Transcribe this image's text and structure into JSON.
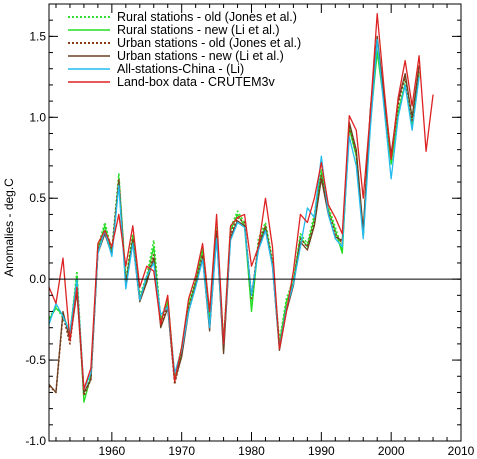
{
  "chart_data": {
    "type": "line",
    "title": "",
    "xlabel": "",
    "ylabel": "Anomalies - deg.C",
    "xlim": [
      1951,
      2010
    ],
    "ylim": [
      -1.0,
      1.7
    ],
    "x_ticks": [
      1960,
      1970,
      1980,
      1990,
      2000,
      2010
    ],
    "y_ticks": [
      -1.0,
      -0.5,
      0.0,
      0.5,
      1.0,
      1.5
    ],
    "x_tick_labels": [
      "1960",
      "1970",
      "1980",
      "1990",
      "2000",
      "2010"
    ],
    "y_tick_labels": [
      "-1.0",
      "-0.5",
      "0.0",
      "0.5",
      "1.0",
      "1.5"
    ],
    "zero_line": true,
    "grid": false,
    "legend_position": "top-left",
    "series": [
      {
        "name": "Rural stations - old (Jones et al.)",
        "color": "#33dd33",
        "dash": "dotted",
        "x": [
          1951,
          1952,
          1953,
          1954,
          1955,
          1956,
          1957,
          1958,
          1959,
          1960,
          1961,
          1962,
          1963,
          1964,
          1965,
          1966,
          1967,
          1968,
          1969,
          1970,
          1971,
          1972,
          1973,
          1974,
          1975,
          1976,
          1977,
          1978,
          1979,
          1980,
          1981,
          1982,
          1983,
          1984,
          1985,
          1986,
          1987,
          1988,
          1989,
          1990,
          1991,
          1992,
          1993,
          1994,
          1995,
          1996,
          1997,
          1998,
          1999,
          2000,
          2001,
          2002,
          2003,
          2004
        ],
        "y": [
          -0.24,
          -0.17,
          -0.24,
          -0.35,
          0.05,
          -0.72,
          -0.6,
          0.2,
          0.35,
          0.18,
          0.65,
          0.0,
          0.28,
          -0.1,
          0.02,
          0.24,
          -0.25,
          -0.12,
          -0.6,
          -0.42,
          -0.15,
          0.0,
          0.2,
          -0.25,
          0.32,
          -0.38,
          0.32,
          0.42,
          0.35,
          -0.18,
          0.25,
          0.35,
          0.12,
          -0.38,
          -0.12,
          0.0,
          0.28,
          0.22,
          0.4,
          0.68,
          0.45,
          0.32,
          0.18,
          0.95,
          0.78,
          0.28,
          0.98,
          1.42,
          1.1,
          0.73,
          1.05,
          1.22,
          0.96,
          1.28
        ]
      },
      {
        "name": "Rural stations - new (Li et al.)",
        "color": "#22dd22",
        "dash": "solid",
        "x": [
          1951,
          1952,
          1953,
          1954,
          1955,
          1956,
          1957,
          1958,
          1959,
          1960,
          1961,
          1962,
          1963,
          1964,
          1965,
          1966,
          1967,
          1968,
          1969,
          1970,
          1971,
          1972,
          1973,
          1974,
          1975,
          1976,
          1977,
          1978,
          1979,
          1980,
          1981,
          1982,
          1983,
          1984,
          1985,
          1986,
          1987,
          1988,
          1989,
          1990,
          1991,
          1992,
          1993,
          1994,
          1995,
          1996,
          1997,
          1998,
          1999,
          2000,
          2001,
          2002,
          2003,
          2004
        ],
        "y": [
          -0.25,
          -0.18,
          -0.22,
          -0.33,
          0.02,
          -0.76,
          -0.6,
          0.18,
          0.33,
          0.16,
          0.62,
          -0.02,
          0.26,
          -0.12,
          0.0,
          0.2,
          -0.26,
          -0.14,
          -0.62,
          -0.45,
          -0.16,
          -0.02,
          0.18,
          -0.27,
          0.3,
          -0.4,
          0.3,
          0.4,
          0.33,
          -0.2,
          0.22,
          0.33,
          0.1,
          -0.4,
          -0.14,
          -0.02,
          0.26,
          0.2,
          0.38,
          0.66,
          0.43,
          0.3,
          0.16,
          0.93,
          0.76,
          0.26,
          0.96,
          1.4,
          1.08,
          0.71,
          1.03,
          1.2,
          0.94,
          1.26
        ]
      },
      {
        "name": "Urban stations - old (Jones et al.)",
        "color": "#8b3a1a",
        "dash": "dotted",
        "x": [
          1951,
          1952,
          1953,
          1954,
          1955,
          1956,
          1957,
          1958,
          1959,
          1960,
          1961,
          1962,
          1963,
          1964,
          1965,
          1966,
          1967,
          1968,
          1969,
          1970,
          1971,
          1972,
          1973,
          1974,
          1975,
          1976,
          1977,
          1978,
          1979,
          1980,
          1981,
          1982,
          1983,
          1984,
          1985,
          1986,
          1987,
          1988,
          1989,
          1990,
          1991,
          1992,
          1993,
          1994,
          1995,
          1996,
          1997,
          1998,
          1999,
          2000,
          2001,
          2002,
          2003,
          2004
        ],
        "y": [
          -0.66,
          -0.7,
          -0.22,
          -0.4,
          -0.05,
          -0.72,
          -0.62,
          0.18,
          0.3,
          0.17,
          0.62,
          -0.02,
          0.25,
          -0.12,
          0.0,
          0.15,
          -0.28,
          -0.16,
          -0.65,
          -0.46,
          -0.18,
          -0.02,
          0.15,
          -0.3,
          0.3,
          -0.44,
          0.28,
          0.38,
          0.35,
          -0.12,
          0.22,
          0.33,
          0.1,
          -0.42,
          -0.18,
          -0.02,
          0.25,
          0.2,
          0.35,
          0.64,
          0.42,
          0.28,
          0.22,
          0.95,
          0.78,
          0.28,
          1.02,
          1.48,
          1.1,
          0.75,
          1.08,
          1.25,
          0.98,
          1.3
        ]
      },
      {
        "name": "Urban stations - new (Li et al.)",
        "color": "#6b4020",
        "dash": "solid",
        "x": [
          1951,
          1952,
          1953,
          1954,
          1955,
          1956,
          1957,
          1958,
          1959,
          1960,
          1961,
          1962,
          1963,
          1964,
          1965,
          1966,
          1967,
          1968,
          1969,
          1970,
          1971,
          1972,
          1973,
          1974,
          1975,
          1976,
          1977,
          1978,
          1979,
          1980,
          1981,
          1982,
          1983,
          1984,
          1985,
          1986,
          1987,
          1988,
          1989,
          1990,
          1991,
          1992,
          1993,
          1994,
          1995,
          1996,
          1997,
          1998,
          1999,
          2000,
          2001,
          2002,
          2003,
          2004
        ],
        "y": [
          -0.65,
          -0.7,
          -0.2,
          -0.38,
          -0.08,
          -0.7,
          -0.62,
          0.16,
          0.28,
          0.15,
          0.6,
          -0.04,
          0.23,
          -0.14,
          -0.02,
          0.13,
          -0.3,
          -0.18,
          -0.63,
          -0.48,
          -0.2,
          -0.04,
          0.13,
          -0.32,
          0.28,
          -0.46,
          0.26,
          0.36,
          0.33,
          -0.1,
          0.2,
          0.31,
          0.08,
          -0.44,
          -0.2,
          -0.04,
          0.23,
          0.18,
          0.33,
          0.62,
          0.4,
          0.26,
          0.24,
          0.97,
          0.8,
          0.3,
          1.04,
          1.5,
          1.12,
          0.77,
          1.1,
          1.27,
          1.0,
          1.32
        ]
      },
      {
        "name": "All-stations-China - (Li)",
        "color": "#22bbee",
        "dash": "solid",
        "x": [
          1951,
          1952,
          1953,
          1954,
          1955,
          1956,
          1957,
          1958,
          1959,
          1960,
          1961,
          1962,
          1963,
          1964,
          1965,
          1966,
          1967,
          1968,
          1969,
          1970,
          1971,
          1972,
          1973,
          1974,
          1975,
          1976,
          1977,
          1978,
          1979,
          1980,
          1981,
          1982,
          1983,
          1984,
          1985,
          1986,
          1987,
          1988,
          1989,
          1990,
          1991,
          1992,
          1993,
          1994,
          1995,
          1996,
          1997,
          1998,
          1999,
          2000,
          2001,
          2002,
          2003,
          2004
        ],
        "y": [
          -0.28,
          -0.15,
          -0.23,
          -0.33,
          0.0,
          -0.68,
          -0.58,
          0.16,
          0.3,
          0.14,
          0.58,
          -0.06,
          0.22,
          -0.13,
          0.02,
          0.1,
          -0.22,
          -0.17,
          -0.58,
          -0.44,
          -0.2,
          -0.05,
          0.12,
          -0.3,
          0.25,
          -0.4,
          0.24,
          0.35,
          0.32,
          -0.1,
          0.18,
          0.3,
          0.08,
          -0.42,
          -0.18,
          -0.03,
          0.2,
          0.44,
          0.38,
          0.76,
          0.4,
          0.25,
          0.2,
          0.88,
          0.7,
          0.25,
          0.92,
          1.48,
          1.05,
          0.62,
          1.0,
          1.2,
          0.92,
          1.25
        ]
      },
      {
        "name": "Land-box data - CRUTEM3v",
        "color": "#dd2222",
        "dash": "solid",
        "x": [
          1951,
          1952,
          1953,
          1954,
          1955,
          1956,
          1957,
          1958,
          1959,
          1960,
          1961,
          1962,
          1963,
          1964,
          1965,
          1966,
          1967,
          1968,
          1969,
          1970,
          1971,
          1972,
          1973,
          1974,
          1975,
          1976,
          1977,
          1978,
          1979,
          1980,
          1981,
          1982,
          1983,
          1984,
          1985,
          1986,
          1987,
          1988,
          1989,
          1990,
          1991,
          1992,
          1993,
          1994,
          1995,
          1996,
          1997,
          1998,
          1999,
          2000,
          2001,
          2002,
          2003,
          2004,
          2005,
          2006
        ],
        "y": [
          -0.05,
          -0.15,
          0.13,
          -0.38,
          -0.05,
          -0.68,
          -0.55,
          0.22,
          0.3,
          0.2,
          0.4,
          0.08,
          0.33,
          -0.05,
          0.08,
          0.05,
          -0.28,
          -0.1,
          -0.63,
          -0.42,
          -0.12,
          0.02,
          0.22,
          -0.2,
          0.4,
          -0.4,
          0.33,
          0.38,
          0.4,
          0.08,
          0.2,
          0.5,
          0.2,
          -0.43,
          -0.2,
          0.05,
          0.4,
          0.35,
          0.5,
          0.72,
          0.46,
          0.38,
          0.28,
          1.01,
          0.92,
          0.5,
          1.02,
          1.64,
          1.17,
          0.74,
          1.12,
          1.35,
          1.07,
          1.38,
          0.79,
          1.14
        ]
      }
    ]
  }
}
